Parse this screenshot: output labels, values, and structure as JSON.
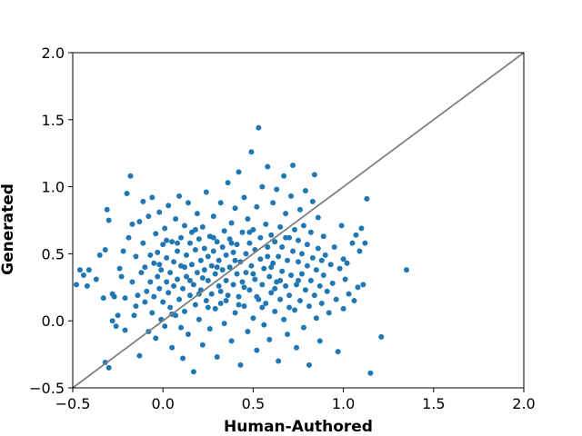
{
  "chart_data": {
    "type": "scatter",
    "title": "",
    "xlabel": "Human-Authored",
    "ylabel": "Generated",
    "xlim": [
      -0.5,
      2.0
    ],
    "ylim": [
      -0.5,
      2.0
    ],
    "xticks": [
      "−0.5",
      "0.0",
      "0.5",
      "1.0",
      "1.5",
      "2.0"
    ],
    "yticks": [
      "−0.5",
      "0.0",
      "0.5",
      "1.0",
      "1.5",
      "2.0"
    ],
    "xtick_values": [
      -0.5,
      0.0,
      0.5,
      1.0,
      1.5,
      2.0
    ],
    "ytick_values": [
      -0.5,
      0.0,
      0.5,
      1.0,
      1.5,
      2.0
    ],
    "grid": false,
    "marker_color": "#1f77b4",
    "reference_line": {
      "from": [
        -0.5,
        -0.5
      ],
      "to": [
        2.0,
        2.0
      ],
      "color": "#808080"
    },
    "series": [
      {
        "name": "",
        "points": [
          [
            -0.48,
            0.27
          ],
          [
            -0.46,
            0.38
          ],
          [
            -0.44,
            0.34
          ],
          [
            -0.42,
            0.26
          ],
          [
            -0.41,
            0.38
          ],
          [
            -0.37,
            0.31
          ],
          [
            -0.35,
            0.49
          ],
          [
            -0.33,
            0.17
          ],
          [
            -0.32,
            -0.31
          ],
          [
            -0.32,
            0.53
          ],
          [
            -0.31,
            0.83
          ],
          [
            -0.3,
            0.75
          ],
          [
            -0.3,
            -0.35
          ],
          [
            -0.28,
            0.2
          ],
          [
            -0.28,
            0.0
          ],
          [
            -0.27,
            0.18
          ],
          [
            -0.26,
            -0.04
          ],
          [
            -0.25,
            0.04
          ],
          [
            -0.24,
            0.39
          ],
          [
            -0.23,
            0.33
          ],
          [
            -0.22,
            0.52
          ],
          [
            -0.21,
            0.17
          ],
          [
            -0.21,
            -0.07
          ],
          [
            -0.2,
            0.95
          ],
          [
            -0.19,
            0.62
          ],
          [
            -0.18,
            1.08
          ],
          [
            -0.17,
            0.29
          ],
          [
            -0.17,
            0.72
          ],
          [
            -0.16,
            0.04
          ],
          [
            -0.15,
            0.11
          ],
          [
            -0.15,
            0.48
          ],
          [
            -0.14,
            0.19
          ],
          [
            -0.13,
            0.74
          ],
          [
            -0.13,
            -0.26
          ],
          [
            -0.12,
            0.36
          ],
          [
            -0.11,
            0.89
          ],
          [
            -0.11,
            0.58
          ],
          [
            -0.1,
            0.4
          ],
          [
            -0.1,
            0.14
          ],
          [
            -0.09,
            0.22
          ],
          [
            -0.08,
            0.78
          ],
          [
            -0.08,
            -0.08
          ],
          [
            -0.07,
            0.49
          ],
          [
            -0.07,
            0.29
          ],
          [
            -0.06,
            0.06
          ],
          [
            -0.06,
            0.92
          ],
          [
            -0.05,
            0.43
          ],
          [
            -0.05,
            0.18
          ],
          [
            -0.04,
            0.65
          ],
          [
            -0.04,
            -0.13
          ],
          [
            -0.03,
            0.33
          ],
          [
            -0.03,
            0.51
          ],
          [
            -0.02,
            0.81
          ],
          [
            -0.02,
            0.24
          ],
          [
            -0.01,
            0.01
          ],
          [
            -0.01,
            0.38
          ],
          [
            0.0,
            0.57
          ],
          [
            0.0,
            0.14
          ],
          [
            0.01,
            -0.04
          ],
          [
            0.01,
            0.69
          ],
          [
            0.02,
            0.29
          ],
          [
            0.02,
            0.47
          ],
          [
            0.03,
            0.86
          ],
          [
            0.03,
            0.21
          ],
          [
            0.04,
            0.1
          ],
          [
            0.04,
            0.36
          ],
          [
            0.05,
            0.59
          ],
          [
            0.05,
            -0.2
          ],
          [
            0.06,
            0.44
          ],
          [
            0.06,
            0.26
          ],
          [
            0.07,
            0.76
          ],
          [
            0.07,
            0.04
          ],
          [
            0.08,
            0.52
          ],
          [
            0.08,
            0.31
          ],
          [
            0.09,
            0.93
          ],
          [
            0.09,
            0.16
          ],
          [
            0.1,
            0.62
          ],
          [
            0.1,
            0.41
          ],
          [
            0.11,
            -0.28
          ],
          [
            0.11,
            0.24
          ],
          [
            0.12,
            0.71
          ],
          [
            0.12,
            0.07
          ],
          [
            0.13,
            0.49
          ],
          [
            0.13,
            0.33
          ],
          [
            0.14,
            0.88
          ],
          [
            0.14,
            -0.1
          ],
          [
            0.15,
            0.58
          ],
          [
            0.15,
            0.19
          ],
          [
            0.16,
            0.42
          ],
          [
            0.16,
            0.66
          ],
          [
            0.17,
            0.27
          ],
          [
            0.17,
            -0.38
          ],
          [
            0.18,
            0.53
          ],
          [
            0.18,
            0.12
          ],
          [
            0.19,
            0.8
          ],
          [
            0.19,
            0.36
          ],
          [
            0.2,
            0.61
          ],
          [
            0.2,
            0.01
          ],
          [
            0.21,
            0.45
          ],
          [
            0.21,
            0.23
          ],
          [
            0.22,
            0.7
          ],
          [
            0.22,
            -0.18
          ],
          [
            0.23,
            0.38
          ],
          [
            0.23,
            0.54
          ],
          [
            0.24,
            0.15
          ],
          [
            0.24,
            0.96
          ],
          [
            0.25,
            0.48
          ],
          [
            0.25,
            0.3
          ],
          [
            0.26,
            0.63
          ],
          [
            0.26,
            -0.06
          ],
          [
            0.27,
            0.41
          ],
          [
            0.27,
            0.2
          ],
          [
            0.28,
            0.78
          ],
          [
            0.28,
            0.52
          ],
          [
            0.29,
            0.09
          ],
          [
            0.29,
            0.35
          ],
          [
            0.3,
            0.59
          ],
          [
            0.3,
            -0.27
          ],
          [
            0.31,
            0.45
          ],
          [
            0.31,
            0.26
          ],
          [
            0.32,
            0.88
          ],
          [
            0.32,
            0.13
          ],
          [
            0.33,
            0.55
          ],
          [
            0.33,
            0.38
          ],
          [
            0.34,
            0.67
          ],
          [
            0.34,
            -0.02
          ],
          [
            0.35,
            0.3
          ],
          [
            0.35,
            0.49
          ],
          [
            0.36,
            1.03
          ],
          [
            0.36,
            0.19
          ],
          [
            0.37,
            0.61
          ],
          [
            0.37,
            0.4
          ],
          [
            0.38,
            -0.15
          ],
          [
            0.38,
            0.73
          ],
          [
            0.39,
            0.27
          ],
          [
            0.39,
            0.51
          ],
          [
            0.4,
            0.06
          ],
          [
            0.4,
            0.84
          ],
          [
            0.41,
            0.35
          ],
          [
            0.41,
            0.57
          ],
          [
            0.42,
            1.11
          ],
          [
            0.42,
            0.18
          ],
          [
            0.43,
            0.44
          ],
          [
            0.43,
            -0.33
          ],
          [
            0.44,
            0.66
          ],
          [
            0.44,
            0.29
          ],
          [
            0.45,
            0.92
          ],
          [
            0.45,
            0.11
          ],
          [
            0.46,
            0.5
          ],
          [
            0.46,
            0.36
          ],
          [
            0.47,
            0.76
          ],
          [
            0.47,
            -0.08
          ],
          [
            0.48,
            0.23
          ],
          [
            0.48,
            0.58
          ],
          [
            0.49,
            1.26
          ],
          [
            0.49,
            0.41
          ],
          [
            0.5,
            0.02
          ],
          [
            0.5,
            0.68
          ],
          [
            0.51,
            0.31
          ],
          [
            0.51,
            0.53
          ],
          [
            0.52,
            0.85
          ],
          [
            0.52,
            -0.22
          ],
          [
            0.53,
            1.44
          ],
          [
            0.53,
            0.16
          ],
          [
            0.54,
            0.46
          ],
          [
            0.54,
            0.62
          ],
          [
            0.55,
            0.27
          ],
          [
            0.55,
            1.0
          ],
          [
            0.56,
            -0.03
          ],
          [
            0.56,
            0.39
          ],
          [
            0.57,
            0.72
          ],
          [
            0.57,
            0.13
          ],
          [
            0.58,
            1.15
          ],
          [
            0.58,
            0.55
          ],
          [
            0.59,
            0.33
          ],
          [
            0.59,
            -0.14
          ],
          [
            0.6,
            0.64
          ],
          [
            0.6,
            0.21
          ],
          [
            0.61,
            0.88
          ],
          [
            0.61,
            0.43
          ],
          [
            0.62,
            0.07
          ],
          [
            0.62,
            0.59
          ],
          [
            0.63,
            0.29
          ],
          [
            0.63,
            0.98
          ],
          [
            0.64,
            -0.3
          ],
          [
            0.64,
            0.48
          ],
          [
            0.65,
            0.16
          ],
          [
            0.65,
            0.7
          ],
          [
            0.66,
            0.37
          ],
          [
            0.66,
            0.55
          ],
          [
            0.67,
            1.08
          ],
          [
            0.67,
            0.01
          ],
          [
            0.68,
            0.26
          ],
          [
            0.68,
            0.8
          ],
          [
            0.69,
            0.45
          ],
          [
            0.69,
            -0.1
          ],
          [
            0.7,
            0.62
          ],
          [
            0.7,
            0.19
          ],
          [
            0.71,
            0.93
          ],
          [
            0.71,
            0.34
          ],
          [
            0.72,
            1.16
          ],
          [
            0.72,
            0.52
          ],
          [
            0.73,
            0.08
          ],
          [
            0.73,
            0.68
          ],
          [
            0.74,
            0.27
          ],
          [
            0.74,
            -0.2
          ],
          [
            0.75,
            0.44
          ],
          [
            0.75,
            0.6
          ],
          [
            0.76,
            0.15
          ],
          [
            0.76,
            0.83
          ],
          [
            0.77,
            0.35
          ],
          [
            0.77,
            0.5
          ],
          [
            0.78,
            -0.05
          ],
          [
            0.78,
            0.71
          ],
          [
            0.79,
            0.23
          ],
          [
            0.79,
            0.97
          ],
          [
            0.8,
            0.41
          ],
          [
            0.8,
            0.57
          ],
          [
            0.81,
            0.11
          ],
          [
            0.81,
            -0.33
          ],
          [
            0.82,
            0.66
          ],
          [
            0.82,
            0.3
          ],
          [
            0.83,
            0.47
          ],
          [
            0.83,
            0.89
          ],
          [
            0.84,
            0.19
          ],
          [
            0.84,
            1.09
          ],
          [
            0.85,
            0.38
          ],
          [
            0.85,
            0.02
          ],
          [
            0.86,
            0.54
          ],
          [
            0.86,
            0.77
          ],
          [
            0.87,
            0.26
          ],
          [
            0.87,
            -0.15
          ],
          [
            0.88,
            0.45
          ],
          [
            0.88,
            0.13
          ],
          [
            0.89,
            0.63
          ],
          [
            0.89,
            0.34
          ],
          [
            0.9,
            0.49
          ],
          [
            0.91,
            0.22
          ],
          [
            0.92,
            0.06
          ],
          [
            0.93,
            0.42
          ],
          [
            0.94,
            0.28
          ],
          [
            0.95,
            0.55
          ],
          [
            0.96,
            0.16
          ],
          [
            0.97,
            -0.23
          ],
          [
            0.98,
            0.39
          ],
          [
            0.99,
            0.71
          ],
          [
            1.0,
            0.46
          ],
          [
            1.0,
            0.09
          ],
          [
            1.01,
            0.31
          ],
          [
            1.02,
            0.43
          ],
          [
            1.03,
            0.2
          ],
          [
            1.05,
            0.58
          ],
          [
            1.06,
            0.15
          ],
          [
            1.07,
            0.64
          ],
          [
            1.08,
            0.25
          ],
          [
            1.09,
            0.52
          ],
          [
            1.1,
            0.69
          ],
          [
            1.11,
            0.27
          ],
          [
            1.12,
            0.58
          ],
          [
            1.13,
            0.91
          ],
          [
            1.15,
            -0.39
          ],
          [
            1.21,
            -0.12
          ],
          [
            1.35,
            0.38
          ],
          [
            0.05,
            0.05
          ],
          [
            0.1,
            -0.05
          ],
          [
            0.15,
            0.3
          ],
          [
            0.2,
            0.2
          ],
          [
            0.25,
            0.1
          ],
          [
            0.3,
            0.4
          ],
          [
            0.35,
            0.15
          ],
          [
            0.4,
            0.45
          ],
          [
            0.45,
            0.25
          ],
          [
            0.5,
            0.35
          ],
          [
            0.55,
            0.1
          ],
          [
            0.6,
            0.4
          ],
          [
            0.65,
            0.3
          ],
          [
            0.7,
            0.1
          ],
          [
            0.75,
            0.3
          ],
          [
            0.08,
            0.58
          ],
          [
            0.18,
            0.68
          ],
          [
            0.28,
            0.62
          ],
          [
            0.38,
            0.58
          ],
          [
            0.48,
            0.66
          ],
          [
            0.58,
            0.48
          ],
          [
            0.68,
            0.62
          ],
          [
            0.12,
            0.4
          ],
          [
            0.22,
            0.32
          ],
          [
            0.32,
            0.22
          ],
          [
            0.42,
            0.12
          ],
          [
            0.52,
            0.18
          ],
          [
            0.62,
            0.24
          ],
          [
            0.02,
            0.6
          ],
          [
            -0.02,
            0.42
          ]
        ]
      }
    ]
  }
}
